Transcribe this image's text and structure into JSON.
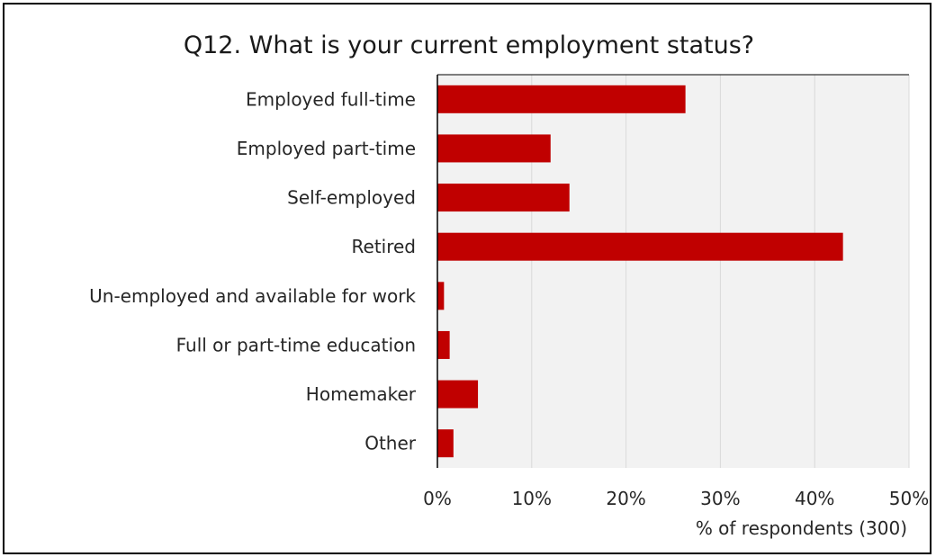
{
  "chart_data": {
    "type": "bar",
    "orientation": "horizontal",
    "title": "Q12. What is your current employment status?",
    "xlabel": "% of respondents (300)",
    "ylabel": "",
    "categories": [
      "Employed full-time",
      "Employed part-time",
      "Self-employed",
      "Retired",
      "Un-employed and available for work",
      "Full or part-time education",
      "Homemaker",
      "Other"
    ],
    "values": [
      26.3,
      12.0,
      14.0,
      43.0,
      0.7,
      1.3,
      4.3,
      1.7
    ],
    "xlim": [
      0,
      50
    ],
    "xticks": [
      "0%",
      "10%",
      "20%",
      "30%",
      "40%",
      "50%"
    ],
    "grid": "vertical",
    "colors": {
      "bar": "#C00000",
      "plot_background": "#F2F2F2",
      "gridline": "#D9D9D9",
      "axis": "#000000"
    }
  }
}
